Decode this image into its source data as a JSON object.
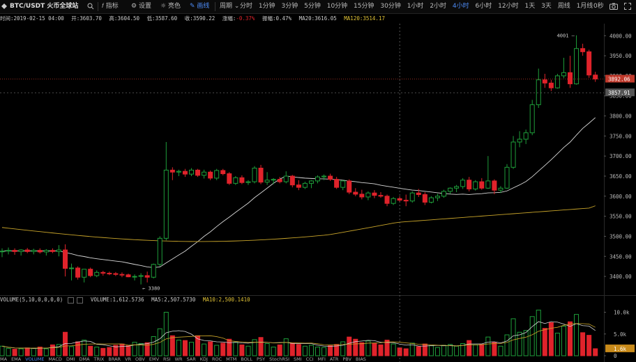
{
  "toolbar": {
    "symbol": "BTC/USDT 火币全球站",
    "indicators_label": "指标",
    "settings_label": "设置",
    "theme_label": "亮色",
    "draw_label": "画线",
    "period_label": "周期",
    "intervals": [
      "分时",
      "1分钟",
      "3分钟",
      "5分钟",
      "10分钟",
      "15分钟",
      "30分钟",
      "1小时",
      "2小时",
      "4小时",
      "6小时",
      "12小时",
      "1天",
      "3天",
      "周线",
      "1月线"
    ],
    "active_interval": "4小时",
    "countdown": "0秒"
  },
  "infobar": {
    "time": "时间:2019-02-15 04:00",
    "open": "开:3603.70",
    "high": "高:3604.50",
    "low": "低:3587.60",
    "close": "收:3590.22",
    "change_label": "涨幅:",
    "change_value": "-0.37%",
    "amplitude": "振幅:0.47%",
    "ma20": "MA20:3616.05",
    "ma120": "MA120:3514.17"
  },
  "price_axis": {
    "ticks": [
      "4000.00",
      "3950.00",
      "3900.00",
      "3850.00",
      "3800.00",
      "3750.00",
      "3700.00",
      "3650.00",
      "3600.00",
      "3550.00",
      "3500.00",
      "3450.00",
      "3400.00"
    ],
    "current_price": "3892.06",
    "crosshair_price": "3857.91",
    "high_marker": "4001",
    "low_marker": "3380"
  },
  "volume_panel": {
    "legend_name": "VOLUME(5,10,0,0,0,0)",
    "volume": "VOLUME:1,612.5736",
    "ma5": "MA5:2,507.5730",
    "ma10": "MA10:2,500.1410",
    "ticks": [
      "10.0k",
      "5.0k",
      "0"
    ],
    "current_volume": "1.6k"
  },
  "indicator_tabs": [
    "MA",
    "EMA",
    "VOLUME",
    "MACD",
    "DMI",
    "DMA",
    "TRIX",
    "BRAR",
    "VR",
    "OBV",
    "EMV",
    "RSI",
    "WR",
    "SAR",
    "KDJ",
    "ROC",
    "MTM",
    "BOLL",
    "PSY",
    "StochRSI",
    "SMI",
    "CCI",
    "MFI",
    "ATR",
    "PBV",
    "BIAS"
  ],
  "colors": {
    "up": "#1e9e3a",
    "down": "#e0232b",
    "ma20": "#d8d8d8",
    "ma120": "#c9a52a",
    "active": "#4d8bf5"
  },
  "chart_data": {
    "type": "candlestick",
    "interval": "4小时",
    "price_range": [
      3355,
      4030
    ],
    "volume_range": [
      0,
      12000
    ],
    "candles": [
      {
        "o": 3462,
        "h": 3470,
        "l": 3448,
        "c": 3463,
        "v": 2200
      },
      {
        "o": 3463,
        "h": 3472,
        "l": 3455,
        "c": 3465,
        "v": 1700
      },
      {
        "o": 3465,
        "h": 3470,
        "l": 3454,
        "c": 3462,
        "v": 1500
      },
      {
        "o": 3462,
        "h": 3468,
        "l": 3452,
        "c": 3466,
        "v": 1600
      },
      {
        "o": 3466,
        "h": 3471,
        "l": 3458,
        "c": 3462,
        "v": 1800
      },
      {
        "o": 3462,
        "h": 3469,
        "l": 3455,
        "c": 3465,
        "v": 1700
      },
      {
        "o": 3465,
        "h": 3470,
        "l": 3457,
        "c": 3461,
        "v": 2000
      },
      {
        "o": 3461,
        "h": 3468,
        "l": 3452,
        "c": 3465,
        "v": 1600
      },
      {
        "o": 3465,
        "h": 3470,
        "l": 3458,
        "c": 3462,
        "v": 2500
      },
      {
        "o": 3462,
        "h": 3478,
        "l": 3450,
        "c": 3466,
        "v": 2600
      },
      {
        "o": 3466,
        "h": 3480,
        "l": 3400,
        "c": 3420,
        "v": 5400
      },
      {
        "o": 3420,
        "h": 3432,
        "l": 3390,
        "c": 3421,
        "v": 2100
      },
      {
        "o": 3421,
        "h": 3425,
        "l": 3392,
        "c": 3398,
        "v": 3200
      },
      {
        "o": 3398,
        "h": 3418,
        "l": 3385,
        "c": 3418,
        "v": 3600
      },
      {
        "o": 3418,
        "h": 3422,
        "l": 3398,
        "c": 3402,
        "v": 2200
      },
      {
        "o": 3402,
        "h": 3415,
        "l": 3398,
        "c": 3410,
        "v": 2000
      },
      {
        "o": 3410,
        "h": 3414,
        "l": 3402,
        "c": 3408,
        "v": 1700
      },
      {
        "o": 3408,
        "h": 3412,
        "l": 3403,
        "c": 3407,
        "v": 1900
      },
      {
        "o": 3407,
        "h": 3411,
        "l": 3401,
        "c": 3405,
        "v": 2400
      },
      {
        "o": 3405,
        "h": 3410,
        "l": 3398,
        "c": 3404,
        "v": 2700
      },
      {
        "o": 3404,
        "h": 3407,
        "l": 3398,
        "c": 3399,
        "v": 2300
      },
      {
        "o": 3399,
        "h": 3405,
        "l": 3390,
        "c": 3400,
        "v": 3100
      },
      {
        "o": 3400,
        "h": 3408,
        "l": 3380,
        "c": 3402,
        "v": 2800
      },
      {
        "o": 3402,
        "h": 3412,
        "l": 3385,
        "c": 3398,
        "v": 3000
      },
      {
        "o": 3398,
        "h": 3432,
        "l": 3395,
        "c": 3430,
        "v": 4400
      },
      {
        "o": 3430,
        "h": 3500,
        "l": 3425,
        "c": 3495,
        "v": 6200
      },
      {
        "o": 3495,
        "h": 3735,
        "l": 3490,
        "c": 3665,
        "v": 10000
      },
      {
        "o": 3665,
        "h": 3672,
        "l": 3640,
        "c": 3660,
        "v": 4600
      },
      {
        "o": 3660,
        "h": 3666,
        "l": 3650,
        "c": 3662,
        "v": 3600
      },
      {
        "o": 3662,
        "h": 3668,
        "l": 3648,
        "c": 3655,
        "v": 3500
      },
      {
        "o": 3655,
        "h": 3670,
        "l": 3650,
        "c": 3665,
        "v": 3100
      },
      {
        "o": 3665,
        "h": 3668,
        "l": 3648,
        "c": 3652,
        "v": 4600
      },
      {
        "o": 3652,
        "h": 3666,
        "l": 3644,
        "c": 3660,
        "v": 2700
      },
      {
        "o": 3660,
        "h": 3664,
        "l": 3640,
        "c": 3645,
        "v": 3200
      },
      {
        "o": 3645,
        "h": 3668,
        "l": 3640,
        "c": 3664,
        "v": 2400
      },
      {
        "o": 3664,
        "h": 3668,
        "l": 3652,
        "c": 3656,
        "v": 2900
      },
      {
        "o": 3656,
        "h": 3660,
        "l": 3628,
        "c": 3632,
        "v": 3800
      },
      {
        "o": 3632,
        "h": 3650,
        "l": 3628,
        "c": 3646,
        "v": 3100
      },
      {
        "o": 3646,
        "h": 3652,
        "l": 3630,
        "c": 3634,
        "v": 2500
      },
      {
        "o": 3634,
        "h": 3640,
        "l": 3628,
        "c": 3636,
        "v": 2200
      },
      {
        "o": 3636,
        "h": 3675,
        "l": 3632,
        "c": 3670,
        "v": 3700
      },
      {
        "o": 3670,
        "h": 3678,
        "l": 3630,
        "c": 3635,
        "v": 4200
      },
      {
        "o": 3635,
        "h": 3660,
        "l": 3628,
        "c": 3640,
        "v": 2800
      },
      {
        "o": 3640,
        "h": 3645,
        "l": 3630,
        "c": 3642,
        "v": 2000
      },
      {
        "o": 3642,
        "h": 3648,
        "l": 3632,
        "c": 3636,
        "v": 2500
      },
      {
        "o": 3636,
        "h": 3662,
        "l": 3632,
        "c": 3650,
        "v": 3900
      },
      {
        "o": 3650,
        "h": 3653,
        "l": 3622,
        "c": 3628,
        "v": 2900
      },
      {
        "o": 3628,
        "h": 3640,
        "l": 3615,
        "c": 3622,
        "v": 2600
      },
      {
        "o": 3622,
        "h": 3636,
        "l": 3618,
        "c": 3632,
        "v": 2200
      },
      {
        "o": 3632,
        "h": 3640,
        "l": 3620,
        "c": 3638,
        "v": 2400
      },
      {
        "o": 3638,
        "h": 3652,
        "l": 3632,
        "c": 3648,
        "v": 2000
      },
      {
        "o": 3648,
        "h": 3654,
        "l": 3640,
        "c": 3650,
        "v": 1900
      },
      {
        "o": 3650,
        "h": 3656,
        "l": 3638,
        "c": 3642,
        "v": 2300
      },
      {
        "o": 3642,
        "h": 3648,
        "l": 3618,
        "c": 3622,
        "v": 2600
      },
      {
        "o": 3622,
        "h": 3640,
        "l": 3615,
        "c": 3638,
        "v": 3200
      },
      {
        "o": 3638,
        "h": 3642,
        "l": 3605,
        "c": 3610,
        "v": 4300
      },
      {
        "o": 3610,
        "h": 3620,
        "l": 3600,
        "c": 3605,
        "v": 3800
      },
      {
        "o": 3605,
        "h": 3616,
        "l": 3592,
        "c": 3598,
        "v": 3000
      },
      {
        "o": 3598,
        "h": 3612,
        "l": 3590,
        "c": 3608,
        "v": 3400
      },
      {
        "o": 3608,
        "h": 3615,
        "l": 3595,
        "c": 3602,
        "v": 2800
      },
      {
        "o": 3602,
        "h": 3610,
        "l": 3596,
        "c": 3600,
        "v": 2500
      },
      {
        "o": 3600,
        "h": 3604,
        "l": 3575,
        "c": 3582,
        "v": 3600
      },
      {
        "o": 3582,
        "h": 3598,
        "l": 3578,
        "c": 3594,
        "v": 2700
      },
      {
        "o": 3594,
        "h": 3600,
        "l": 3585,
        "c": 3590,
        "v": 1800
      },
      {
        "o": 3590,
        "h": 3604,
        "l": 3575,
        "c": 3588,
        "v": 1600
      },
      {
        "o": 3588,
        "h": 3612,
        "l": 3584,
        "c": 3608,
        "v": 2900
      },
      {
        "o": 3608,
        "h": 3618,
        "l": 3598,
        "c": 3604,
        "v": 2100
      },
      {
        "o": 3604,
        "h": 3610,
        "l": 3578,
        "c": 3585,
        "v": 2700
      },
      {
        "o": 3585,
        "h": 3600,
        "l": 3582,
        "c": 3596,
        "v": 2300
      },
      {
        "o": 3596,
        "h": 3606,
        "l": 3588,
        "c": 3600,
        "v": 1900
      },
      {
        "o": 3600,
        "h": 3616,
        "l": 3596,
        "c": 3612,
        "v": 2400
      },
      {
        "o": 3612,
        "h": 3622,
        "l": 3606,
        "c": 3620,
        "v": 2600
      },
      {
        "o": 3620,
        "h": 3628,
        "l": 3610,
        "c": 3624,
        "v": 2200
      },
      {
        "o": 3624,
        "h": 3645,
        "l": 3618,
        "c": 3640,
        "v": 2800
      },
      {
        "o": 3640,
        "h": 3648,
        "l": 3612,
        "c": 3618,
        "v": 3500
      },
      {
        "o": 3618,
        "h": 3640,
        "l": 3614,
        "c": 3636,
        "v": 2500
      },
      {
        "o": 3636,
        "h": 3645,
        "l": 3616,
        "c": 3620,
        "v": 2600
      },
      {
        "o": 3620,
        "h": 3700,
        "l": 3618,
        "c": 3638,
        "v": 4300
      },
      {
        "o": 3638,
        "h": 3642,
        "l": 3605,
        "c": 3615,
        "v": 3100
      },
      {
        "o": 3615,
        "h": 3625,
        "l": 3608,
        "c": 3620,
        "v": 2200
      },
      {
        "o": 3620,
        "h": 3680,
        "l": 3618,
        "c": 3672,
        "v": 4800
      },
      {
        "o": 3672,
        "h": 3750,
        "l": 3668,
        "c": 3735,
        "v": 8500
      },
      {
        "o": 3735,
        "h": 3762,
        "l": 3722,
        "c": 3742,
        "v": 5400
      },
      {
        "o": 3742,
        "h": 3766,
        "l": 3730,
        "c": 3758,
        "v": 5800
      },
      {
        "o": 3758,
        "h": 3840,
        "l": 3752,
        "c": 3828,
        "v": 9000
      },
      {
        "o": 3828,
        "h": 3918,
        "l": 3820,
        "c": 3890,
        "v": 10500
      },
      {
        "o": 3890,
        "h": 3905,
        "l": 3870,
        "c": 3882,
        "v": 6300
      },
      {
        "o": 3882,
        "h": 3890,
        "l": 3862,
        "c": 3870,
        "v": 7600
      },
      {
        "o": 3870,
        "h": 3905,
        "l": 3868,
        "c": 3900,
        "v": 5200
      },
      {
        "o": 3900,
        "h": 3945,
        "l": 3894,
        "c": 3908,
        "v": 6800
      },
      {
        "o": 3908,
        "h": 3950,
        "l": 3870,
        "c": 3880,
        "v": 7800
      },
      {
        "o": 3880,
        "h": 4001,
        "l": 3878,
        "c": 3968,
        "v": 9500
      },
      {
        "o": 3968,
        "h": 3980,
        "l": 3950,
        "c": 3960,
        "v": 5300
      },
      {
        "o": 3960,
        "h": 3965,
        "l": 3895,
        "c": 3902,
        "v": 4700
      },
      {
        "o": 3902,
        "h": 3910,
        "l": 3885,
        "c": 3892,
        "v": 1613
      }
    ]
  }
}
